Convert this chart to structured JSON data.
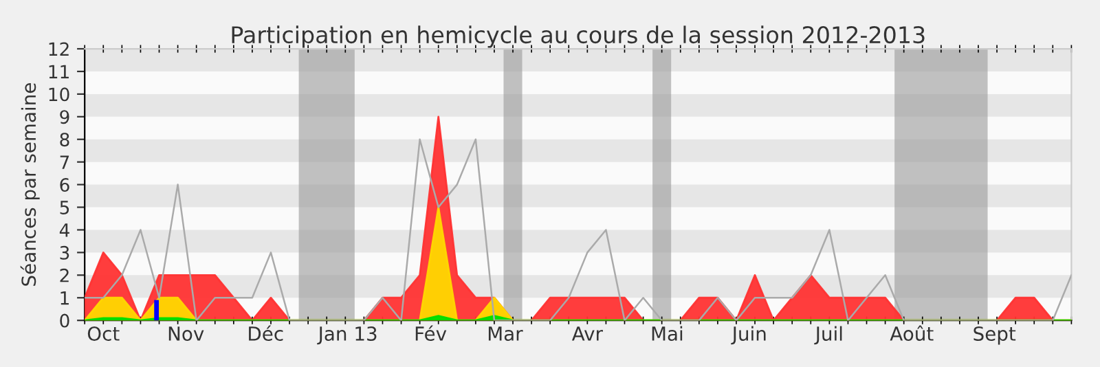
{
  "chart_data": {
    "type": "area",
    "title": "Participation en hemicycle au cours de la session 2012-2013",
    "ylabel": "Séances par semaine",
    "x": [
      "2012-09-24",
      "2012-10-01",
      "2012-10-08",
      "2012-10-15",
      "2012-10-22",
      "2012-10-29",
      "2012-11-05",
      "2012-11-12",
      "2012-11-19",
      "2012-11-26",
      "2012-12-03",
      "2012-12-10",
      "2012-12-17",
      "2012-12-24",
      "2012-12-31",
      "2013-01-07",
      "2013-01-14",
      "2013-01-21",
      "2013-01-28",
      "2013-02-04",
      "2013-02-11",
      "2013-02-18",
      "2013-02-25",
      "2013-03-04",
      "2013-03-11",
      "2013-03-18",
      "2013-03-25",
      "2013-04-01",
      "2013-04-08",
      "2013-04-15",
      "2013-04-22",
      "2013-04-29",
      "2013-05-06",
      "2013-05-13",
      "2013-05-20",
      "2013-05-27",
      "2013-06-03",
      "2013-06-10",
      "2013-06-17",
      "2013-06-24",
      "2013-07-01",
      "2013-07-08",
      "2013-07-15",
      "2013-07-22",
      "2013-07-29",
      "2013-08-05",
      "2013-08-12",
      "2013-08-19",
      "2013-08-26",
      "2013-09-02",
      "2013-09-09",
      "2013-09-16",
      "2013-09-23",
      "2013-09-30"
    ],
    "series": [
      {
        "type": "line",
        "color": "#aaaaaa",
        "values": [
          1,
          1,
          2,
          4,
          1,
          6,
          0,
          1,
          1,
          1,
          3,
          0,
          0,
          0,
          0,
          0,
          1,
          0,
          8,
          5,
          6,
          8,
          0,
          0,
          0,
          0,
          1,
          3,
          4,
          0,
          1,
          0,
          0,
          0,
          1,
          0,
          1,
          1,
          1,
          2,
          4,
          0,
          1,
          2,
          0,
          0,
          0,
          0,
          0,
          0,
          0,
          0,
          0,
          2
        ]
      },
      {
        "color": "#ff3333",
        "values": [
          1,
          3,
          2,
          0,
          2,
          2,
          2,
          2,
          1,
          0,
          1,
          0,
          0,
          0,
          0,
          0,
          1,
          1,
          2,
          9,
          2,
          1,
          1,
          0,
          0,
          1,
          1,
          1,
          1,
          1,
          0,
          0,
          0,
          1,
          1,
          0,
          2,
          0,
          1,
          2,
          1,
          1,
          1,
          1,
          0,
          0,
          0,
          0,
          0,
          0,
          1,
          1,
          0,
          0
        ]
      },
      {
        "color": "#ffd700",
        "values": [
          0,
          1,
          1,
          0,
          1,
          1,
          0,
          0,
          0,
          0,
          0,
          0,
          0,
          0,
          0,
          0,
          0,
          0,
          0,
          5,
          0,
          0,
          1,
          0,
          0,
          0,
          0,
          0,
          0,
          0,
          0,
          0,
          0,
          0,
          0,
          0,
          0,
          0,
          0,
          0,
          0,
          0,
          0,
          0,
          0,
          0,
          0,
          0,
          0,
          0,
          0,
          0,
          0,
          0
        ]
      },
      {
        "color": "#00dd00",
        "values": [
          0,
          0.1,
          0.1,
          0,
          0.1,
          0.1,
          0,
          0,
          0,
          0,
          0,
          0,
          0,
          0,
          0,
          0,
          0,
          0,
          0,
          0.2,
          0,
          0,
          0.2,
          0,
          0,
          0,
          0,
          0,
          0,
          0,
          0,
          0,
          0,
          0,
          0,
          0,
          0,
          0,
          0,
          0,
          0,
          0,
          0,
          0,
          0,
          0,
          0,
          0,
          0,
          0,
          0,
          0,
          0,
          0
        ]
      },
      {
        "type": "bar",
        "color": "#0000ff",
        "x": [
          "2012-10-21"
        ],
        "values": [
          0.9
        ]
      }
    ],
    "xlim": [
      "2012-09-24",
      "2013-09-30"
    ],
    "ylim": [
      0,
      12
    ],
    "yticks": [
      0,
      1,
      2,
      3,
      4,
      5,
      6,
      7,
      8,
      9,
      10,
      11,
      12
    ],
    "xticks": [
      {
        "value": "2012-10-01",
        "label": "Oct"
      },
      {
        "value": "2012-11-01",
        "label": "Nov"
      },
      {
        "value": "2012-12-01",
        "label": "Déc"
      },
      {
        "value": "2013-01-01",
        "label": "Jan 13"
      },
      {
        "value": "2013-02-01",
        "label": "Fév"
      },
      {
        "value": "2013-03-01",
        "label": "Mar"
      },
      {
        "value": "2013-04-01",
        "label": "Avr"
      },
      {
        "value": "2013-05-01",
        "label": "Mai"
      },
      {
        "value": "2013-06-01",
        "label": "Juin"
      },
      {
        "value": "2013-07-01",
        "label": "Juil"
      },
      {
        "value": "2013-08-01",
        "label": "Août"
      },
      {
        "value": "2013-09-01",
        "label": "Sept"
      },
      {
        "value": "2012-09-24",
        "label": null
      },
      {
        "value": "2012-10-01",
        "label": null
      },
      {
        "value": "2012-10-08",
        "label": null
      },
      {
        "value": "2012-10-15",
        "label": null
      },
      {
        "value": "2012-10-22",
        "label": null
      },
      {
        "value": "2012-10-29",
        "label": null
      },
      {
        "value": "2012-11-05",
        "label": null
      },
      {
        "value": "2012-11-12",
        "label": null
      },
      {
        "value": "2012-11-19",
        "label": null
      },
      {
        "value": "2012-11-26",
        "label": null
      },
      {
        "value": "2012-12-03",
        "label": null
      },
      {
        "value": "2012-12-10",
        "label": null
      },
      {
        "value": "2012-12-17",
        "label": null
      },
      {
        "value": "2012-12-24",
        "label": null
      },
      {
        "value": "2012-12-31",
        "label": null
      },
      {
        "value": "2013-01-07",
        "label": null
      },
      {
        "value": "2013-01-14",
        "label": null
      },
      {
        "value": "2013-01-21",
        "label": null
      },
      {
        "value": "2013-01-28",
        "label": null
      },
      {
        "value": "2013-02-04",
        "label": null
      },
      {
        "value": "2013-02-11",
        "label": null
      },
      {
        "value": "2013-02-18",
        "label": null
      },
      {
        "value": "2013-02-25",
        "label": null
      },
      {
        "value": "2013-03-04",
        "label": null
      },
      {
        "value": "2013-03-11",
        "label": null
      },
      {
        "value": "2013-03-18",
        "label": null
      },
      {
        "value": "2013-03-25",
        "label": null
      },
      {
        "value": "2013-04-01",
        "label": null
      },
      {
        "value": "2013-04-08",
        "label": null
      },
      {
        "value": "2013-04-15",
        "label": null
      },
      {
        "value": "2013-04-22",
        "label": null
      },
      {
        "value": "2013-04-29",
        "label": null
      },
      {
        "value": "2013-05-06",
        "label": null
      },
      {
        "value": "2013-05-13",
        "label": null
      },
      {
        "value": "2013-05-20",
        "label": null
      },
      {
        "value": "2013-05-27",
        "label": null
      },
      {
        "value": "2013-06-03",
        "label": null
      },
      {
        "value": "2013-06-10",
        "label": null
      },
      {
        "value": "2013-06-17",
        "label": null
      },
      {
        "value": "2013-06-24",
        "label": null
      },
      {
        "value": "2013-07-01",
        "label": null
      },
      {
        "value": "2013-07-08",
        "label": null
      },
      {
        "value": "2013-07-15",
        "label": null
      },
      {
        "value": "2013-07-22",
        "label": null
      },
      {
        "value": "2013-07-29",
        "label": null
      },
      {
        "value": "2013-08-05",
        "label": null
      },
      {
        "value": "2013-08-12",
        "label": null
      },
      {
        "value": "2013-08-19",
        "label": null
      },
      {
        "value": "2013-08-26",
        "label": null
      },
      {
        "value": "2013-09-02",
        "label": null
      },
      {
        "value": "2013-09-09",
        "label": null
      },
      {
        "value": "2013-09-16",
        "label": null
      },
      {
        "value": "2013-09-23",
        "label": null
      },
      {
        "value": "2013-09-30",
        "label": null
      }
    ],
    "bands": [
      {
        "axis": "x",
        "from": "2012-12-13T12:00",
        "to": "2013-01-03T12:00",
        "color": "#999999"
      },
      {
        "axis": "x",
        "from": "2013-02-28T12:00",
        "to": "2013-03-07T12:00",
        "color": "#999999"
      },
      {
        "axis": "x",
        "from": "2013-04-25T12:00",
        "to": "2013-05-02T12:00",
        "color": "#999999"
      },
      {
        "axis": "x",
        "from": "2013-07-25T12:00",
        "to": "2013-08-29T12:00",
        "color": "#999999"
      }
    ],
    "legend": false
  }
}
